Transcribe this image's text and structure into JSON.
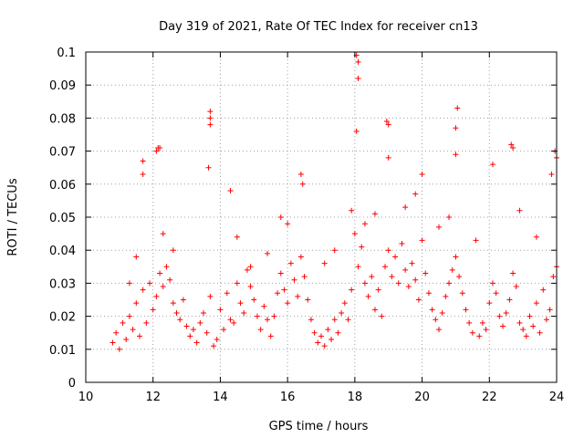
{
  "chart_data": {
    "type": "scatter",
    "title": "Day 319 of 2021, Rate Of TEC Index for receiver cn13",
    "xlabel": "GPS time / hours",
    "ylabel": "ROTI / TECUs",
    "xlim": [
      10,
      24
    ],
    "ylim": [
      0,
      0.1
    ],
    "xticks": [
      "10",
      "12",
      "14",
      "16",
      "18",
      "20",
      "22",
      "24"
    ],
    "yticks": [
      "0",
      "0.01",
      "0.02",
      "0.03",
      "0.04",
      "0.05",
      "0.06",
      "0.07",
      "0.08",
      "0.09",
      "0.1"
    ],
    "grid": true,
    "marker": "+",
    "color": "#ff0000",
    "series": [
      {
        "x": [
          10.8,
          10.9,
          11.0,
          11.1,
          11.2,
          11.3,
          11.4,
          11.5,
          11.6,
          11.7,
          11.8,
          11.9,
          12.0,
          12.1,
          12.2,
          12.3,
          12.4,
          12.5,
          12.6,
          12.7,
          12.8,
          12.9,
          13.0,
          13.1,
          13.2,
          13.3,
          13.4,
          13.5,
          13.6,
          13.7,
          13.8,
          13.9,
          14.0,
          14.1,
          14.2,
          14.3,
          14.4,
          14.5,
          14.6,
          14.7,
          14.8,
          14.9,
          15.0,
          15.1,
          15.2,
          15.3,
          15.4,
          15.5,
          15.6,
          15.7,
          15.8,
          15.9,
          16.0,
          16.1,
          16.2,
          16.3,
          16.4,
          16.5,
          16.6,
          16.7,
          16.8,
          16.9,
          17.0,
          17.1,
          17.2,
          17.3,
          17.4,
          17.5,
          17.6,
          17.7,
          17.8,
          17.9,
          18.0,
          18.1,
          18.2,
          18.3,
          18.4,
          18.5,
          18.6,
          18.7,
          18.8,
          18.9,
          19.0,
          19.1,
          19.2,
          19.3,
          19.4,
          19.5,
          19.6,
          19.7,
          19.8,
          19.9,
          20.0,
          20.1,
          20.2,
          20.3,
          20.4,
          20.5,
          20.6,
          20.7,
          20.8,
          20.9,
          21.0,
          21.1,
          21.2,
          21.3,
          21.4,
          21.5,
          21.7,
          21.8,
          21.9,
          22.0,
          22.1,
          22.2,
          22.3,
          22.4,
          22.5,
          22.6,
          22.7,
          22.8,
          22.9,
          23.0,
          23.1,
          23.2,
          23.3,
          23.4,
          23.5,
          23.6,
          23.7,
          23.8,
          23.9,
          24.0,
          11.7,
          11.7,
          12.1,
          12.15,
          12.2,
          13.7,
          13.7,
          13.7,
          13.65,
          14.3,
          16.4,
          16.45,
          18.05,
          18.1,
          18.1,
          18.05,
          18.95,
          19.0,
          19.0,
          21.0,
          21.05,
          21.0,
          22.65,
          22.7,
          23.95,
          24.0,
          11.5,
          12.6,
          14.5,
          15.8,
          17.9,
          19.5,
          20.0,
          22.1,
          23.4,
          20.8,
          19.8,
          18.3,
          17.4,
          22.9,
          23.85,
          16.0,
          15.4,
          14.9,
          12.3,
          11.3,
          20.5,
          21.6,
          18.6,
          17.1
        ],
        "y": [
          0.012,
          0.015,
          0.01,
          0.018,
          0.013,
          0.02,
          0.016,
          0.024,
          0.014,
          0.028,
          0.018,
          0.03,
          0.022,
          0.026,
          0.033,
          0.029,
          0.035,
          0.031,
          0.024,
          0.021,
          0.019,
          0.025,
          0.017,
          0.014,
          0.016,
          0.012,
          0.018,
          0.021,
          0.015,
          0.026,
          0.011,
          0.013,
          0.022,
          0.016,
          0.027,
          0.019,
          0.018,
          0.03,
          0.024,
          0.021,
          0.034,
          0.029,
          0.025,
          0.02,
          0.016,
          0.023,
          0.019,
          0.014,
          0.02,
          0.027,
          0.033,
          0.028,
          0.024,
          0.036,
          0.031,
          0.026,
          0.038,
          0.032,
          0.025,
          0.019,
          0.015,
          0.012,
          0.014,
          0.011,
          0.016,
          0.013,
          0.019,
          0.015,
          0.021,
          0.024,
          0.019,
          0.028,
          0.045,
          0.035,
          0.041,
          0.03,
          0.026,
          0.032,
          0.022,
          0.028,
          0.02,
          0.035,
          0.04,
          0.032,
          0.038,
          0.03,
          0.042,
          0.034,
          0.029,
          0.036,
          0.031,
          0.025,
          0.043,
          0.033,
          0.027,
          0.022,
          0.019,
          0.016,
          0.021,
          0.026,
          0.03,
          0.034,
          0.038,
          0.032,
          0.027,
          0.022,
          0.018,
          0.015,
          0.014,
          0.018,
          0.016,
          0.024,
          0.03,
          0.027,
          0.02,
          0.017,
          0.021,
          0.025,
          0.033,
          0.029,
          0.018,
          0.016,
          0.014,
          0.02,
          0.017,
          0.024,
          0.015,
          0.028,
          0.019,
          0.022,
          0.032,
          0.035,
          0.067,
          0.063,
          0.07,
          0.071,
          0.071,
          0.082,
          0.08,
          0.078,
          0.065,
          0.058,
          0.063,
          0.06,
          0.099,
          0.097,
          0.092,
          0.076,
          0.079,
          0.078,
          0.068,
          0.077,
          0.083,
          0.069,
          0.072,
          0.071,
          0.07,
          0.068,
          0.038,
          0.04,
          0.044,
          0.05,
          0.052,
          0.053,
          0.063,
          0.066,
          0.044,
          0.05,
          0.057,
          0.048,
          0.04,
          0.052,
          0.063,
          0.048,
          0.039,
          0.035,
          0.045,
          0.03,
          0.047,
          0.043,
          0.051,
          0.036
        ]
      }
    ]
  }
}
